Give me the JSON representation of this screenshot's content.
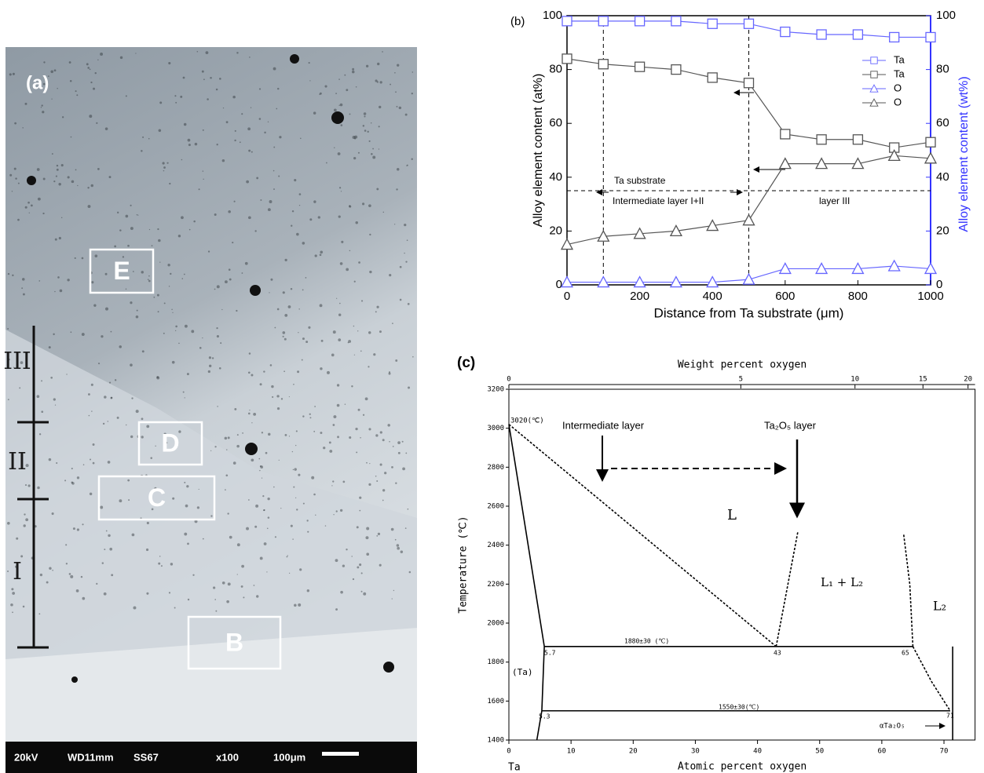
{
  "figure_a": {
    "panel_label": "(a)",
    "regions": [
      "E",
      "D",
      "C",
      "B"
    ],
    "layers": [
      "III",
      "II",
      "I"
    ],
    "scale_bar": [
      "20kV",
      "WD11mm",
      "SS67",
      "x100",
      "100μm"
    ]
  },
  "chart_data": [
    {
      "type": "line",
      "panel_label": "(b)",
      "xlabel": "Distance from Ta substrate (μm)",
      "ylabel": "Alloy element content (at%)",
      "y2label": "Alloy element content (wt%)",
      "x": [
        0,
        100,
        200,
        300,
        400,
        500,
        600,
        700,
        800,
        900,
        1000
      ],
      "xlim": [
        0,
        1000
      ],
      "xticks": [
        0,
        200,
        400,
        600,
        800,
        1000
      ],
      "ylim": [
        0,
        100
      ],
      "yticks": [
        0,
        20,
        40,
        60,
        80,
        100
      ],
      "y2lim": [
        0,
        100
      ],
      "y2ticks": [
        0,
        20,
        40,
        60,
        80,
        100
      ],
      "y2color": "#3333ff",
      "reference_x": [
        100,
        500
      ],
      "reference_y": 35,
      "legend": "upper right",
      "annotations": [
        "Ta substrate",
        "Intermediate layer I+II",
        "layer III"
      ],
      "series": [
        {
          "name": "Ta",
          "color": "#6666ff",
          "marker": "square",
          "axis": "y2",
          "values": [
            98,
            98,
            98,
            98,
            97,
            97,
            94,
            93,
            93,
            92,
            92
          ]
        },
        {
          "name": "Ta",
          "color": "#555555",
          "marker": "square",
          "values": [
            84,
            82,
            81,
            80,
            77,
            75,
            56,
            54,
            54,
            51,
            53
          ]
        },
        {
          "name": "O",
          "color": "#6666ff",
          "marker": "triangle",
          "axis": "y2",
          "values": [
            1,
            1,
            1,
            1,
            1,
            2,
            6,
            6,
            6,
            7,
            6
          ]
        },
        {
          "name": "O",
          "color": "#555555",
          "marker": "triangle",
          "values": [
            15,
            18,
            19,
            20,
            22,
            24,
            45,
            45,
            45,
            48,
            47
          ]
        }
      ]
    },
    {
      "type": "phase",
      "panel_label": "(c)",
      "xlabel": "Atomic percent oxygen",
      "x2label": "Weight percent oxygen",
      "ylabel": "Temperature (℃)",
      "xlim": [
        0,
        75
      ],
      "xticks": [
        0,
        10,
        20,
        30,
        40,
        50,
        60,
        70
      ],
      "x2ticks": [
        0,
        5,
        10,
        15,
        20
      ],
      "ylim": [
        1400,
        3200
      ],
      "yticks": [
        1400,
        1600,
        1800,
        2000,
        2200,
        2400,
        2600,
        2800,
        3000,
        3200
      ],
      "annotations": [
        "3020(℃)",
        "Intermediate layer",
        "Ta₂O₅ layer",
        "L",
        "L₁ + L₂",
        "L₂",
        "1880±30 (℃)",
        "5.7",
        "43",
        "65",
        "(Ta)",
        "1550±30(℃)",
        "5.3",
        "71",
        "αTa₂O₅",
        "Ta"
      ],
      "series": [
        {
          "color": "#000000",
          "x": [
            0,
            5.7,
            5.3,
            4.5
          ],
          "values": [
            3020,
            1880,
            1550,
            1400
          ]
        },
        {
          "color": "#000000",
          "dash": true,
          "x": [
            0,
            43
          ],
          "values": [
            3020,
            1880
          ]
        },
        {
          "color": "#000000",
          "x": [
            5.7,
            65
          ],
          "values": [
            1880,
            1880
          ]
        },
        {
          "color": "#000000",
          "dash": true,
          "x": [
            43,
            46.5
          ],
          "values": [
            1880,
            2470
          ]
        },
        {
          "color": "#000000",
          "dash": true,
          "x": [
            65,
            64.5,
            63.5
          ],
          "values": [
            1880,
            2200,
            2460
          ]
        },
        {
          "color": "#000000",
          "dash": true,
          "x": [
            65,
            68,
            71
          ],
          "values": [
            1880,
            1700,
            1550
          ]
        },
        {
          "color": "#000000",
          "x": [
            5.3,
            71
          ],
          "values": [
            1550,
            1550
          ]
        },
        {
          "color": "#000000",
          "x": [
            71.4,
            71.4
          ],
          "values": [
            1400,
            1880
          ]
        }
      ]
    }
  ]
}
